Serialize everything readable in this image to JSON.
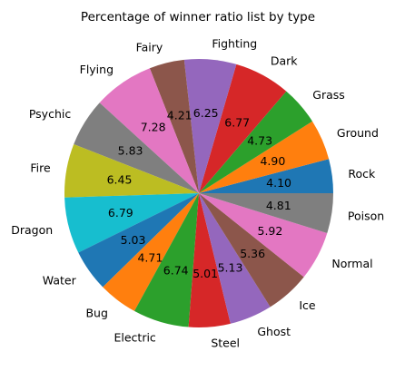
{
  "chart_data": {
    "type": "pie",
    "title": "Percentage of winner ratio list by type",
    "slices": [
      {
        "label": "Rock",
        "value": 4.1,
        "value_label": "4.10",
        "color": "#1f77b4"
      },
      {
        "label": "Ground",
        "value": 4.9,
        "value_label": "4.90",
        "color": "#ff7f0e"
      },
      {
        "label": "Grass",
        "value": 4.73,
        "value_label": "4.73",
        "color": "#2ca02c"
      },
      {
        "label": "Dark",
        "value": 6.77,
        "value_label": "6.77",
        "color": "#d62728"
      },
      {
        "label": "Fighting",
        "value": 6.25,
        "value_label": "6.25",
        "color": "#9467bd"
      },
      {
        "label": "Fairy",
        "value": 4.21,
        "value_label": "4.21",
        "color": "#8c564b"
      },
      {
        "label": "Flying",
        "value": 7.28,
        "value_label": "7.28",
        "color": "#e377c2"
      },
      {
        "label": "Psychic",
        "value": 5.83,
        "value_label": "5.83",
        "color": "#7f7f7f"
      },
      {
        "label": "Fire",
        "value": 6.45,
        "value_label": "6.45",
        "color": "#bcbd22"
      },
      {
        "label": "Dragon",
        "value": 6.79,
        "value_label": "6.79",
        "color": "#17becf"
      },
      {
        "label": "Water",
        "value": 5.03,
        "value_label": "5.03",
        "color": "#1f77b4"
      },
      {
        "label": "Bug",
        "value": 4.71,
        "value_label": "4.71",
        "color": "#ff7f0e"
      },
      {
        "label": "Electric",
        "value": 6.74,
        "value_label": "6.74",
        "color": "#2ca02c"
      },
      {
        "label": "Steel",
        "value": 5.01,
        "value_label": "5.01",
        "color": "#d62728"
      },
      {
        "label": "Ghost",
        "value": 5.13,
        "value_label": "5.13",
        "color": "#9467bd"
      },
      {
        "label": "Ice",
        "value": 5.36,
        "value_label": "5.36",
        "color": "#8c564b"
      },
      {
        "label": "Normal",
        "value": 5.92,
        "value_label": "5.92",
        "color": "#e377c2"
      },
      {
        "label": "Poison",
        "value": 4.81,
        "value_label": "4.81",
        "color": "#7f7f7f"
      }
    ],
    "start_angle_deg": 0,
    "direction": "counterclockwise",
    "edge_color": "#ffffff"
  }
}
